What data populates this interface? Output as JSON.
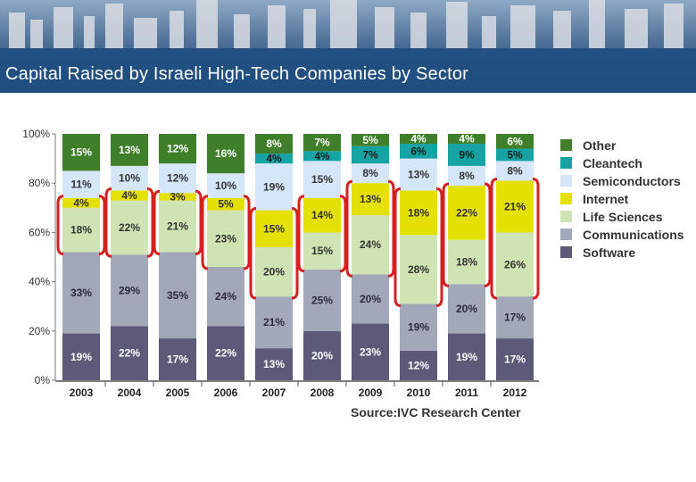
{
  "slide": {
    "title": "Capital Raised by Israeli High-Tech Companies by Sector"
  },
  "colors": {
    "banner_top": "#3a5f86",
    "banner_bottom": "#1f4e80",
    "highlight": "#d61f1f"
  },
  "chart_data": {
    "type": "bar",
    "stacked": true,
    "percent": true,
    "categories": [
      "2003",
      "2004",
      "2005",
      "2006",
      "2007",
      "2008",
      "2009",
      "2010",
      "2011",
      "2012"
    ],
    "series": [
      {
        "name": "Software",
        "color": "#5c5a78",
        "values": [
          19,
          22,
          17,
          22,
          13,
          20,
          23,
          12,
          19,
          17
        ],
        "labels": [
          "19%",
          "22%",
          "17%",
          "22%",
          "13%",
          "20%",
          "23%",
          "12%",
          "19%",
          "17%"
        ],
        "label_color": "#ffffff"
      },
      {
        "name": "Communications",
        "color": "#a3a8b8",
        "values": [
          33,
          29,
          35,
          24,
          21,
          25,
          20,
          19,
          20,
          17
        ],
        "labels": [
          "33%",
          "29%",
          "35%",
          "24%",
          "21%",
          "25%",
          "20%",
          "19%",
          "20%",
          "17%"
        ],
        "label_color": "#2b2b3a"
      },
      {
        "name": "Life Sciences",
        "color": "#cfe4b2",
        "values": [
          18,
          22,
          21,
          23,
          20,
          15,
          24,
          28,
          18,
          26
        ],
        "labels": [
          "18%",
          "22%",
          "21%",
          "23%",
          "20%",
          "15%",
          "24%",
          "28%",
          "18%",
          "26%"
        ],
        "label_color": "#333333"
      },
      {
        "name": "Internet",
        "color": "#e4e000",
        "values": [
          4,
          4,
          3,
          5,
          15,
          14,
          13,
          18,
          22,
          21
        ],
        "labels": [
          "4%",
          "4%",
          "3%",
          "5%",
          "15%",
          "14%",
          "13%",
          "18%",
          "22%",
          "21%"
        ],
        "label_color": "#333333"
      },
      {
        "name": "Semiconductors",
        "color": "#d4e6f7",
        "values": [
          11,
          10,
          12,
          10,
          19,
          15,
          8,
          13,
          8,
          8
        ],
        "labels": [
          "11%",
          "10%",
          "12%",
          "10%",
          "19%",
          "15%",
          "8%",
          "13%",
          "8%",
          "8%"
        ],
        "label_color": "#333333"
      },
      {
        "name": "Cleantech",
        "color": "#16a3a3",
        "values": [
          0,
          0,
          0,
          0,
          4,
          4,
          7,
          6,
          9,
          5
        ],
        "labels": [
          "",
          "",
          "",
          "",
          "4%",
          "4%",
          "7%",
          "6%",
          "9%",
          "5%"
        ],
        "label_color": "#1a1a1a"
      },
      {
        "name": "Other",
        "color": "#3f7f2a",
        "values": [
          15,
          13,
          12,
          16,
          8,
          7,
          5,
          4,
          4,
          6
        ],
        "labels": [
          "15%",
          "13%",
          "12%",
          "16%",
          "8%",
          "7%",
          "5%",
          "4%",
          "4%",
          "6%"
        ],
        "label_color": "#ffffff"
      }
    ],
    "ylim": [
      0,
      100
    ],
    "yticks": [
      "0%",
      "20%",
      "40%",
      "60%",
      "80%",
      "100%"
    ],
    "legend_order": [
      "Other",
      "Cleantech",
      "Semiconductors",
      "Internet",
      "Life Sciences",
      "Communications",
      "Software"
    ],
    "legend_position": "right",
    "source": "Source:IVC Research Center",
    "highlighted_series": [
      "Internet",
      "Life Sciences"
    ]
  }
}
